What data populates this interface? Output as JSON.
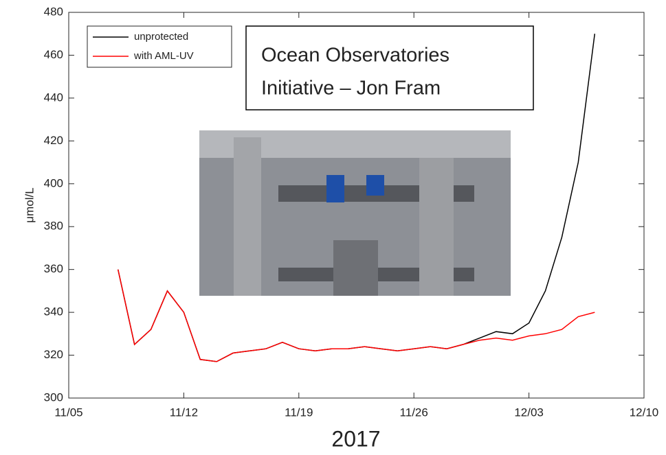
{
  "chart_data": {
    "type": "line",
    "x": [
      "2017-11-08",
      "2017-11-09",
      "2017-11-10",
      "2017-11-11",
      "2017-11-12",
      "2017-11-13",
      "2017-11-14",
      "2017-11-15",
      "2017-11-16",
      "2017-11-17",
      "2017-11-18",
      "2017-11-19",
      "2017-11-20",
      "2017-11-21",
      "2017-11-22",
      "2017-11-23",
      "2017-11-24",
      "2017-11-25",
      "2017-11-26",
      "2017-11-27",
      "2017-11-28",
      "2017-11-29",
      "2017-11-30",
      "2017-12-01",
      "2017-12-02",
      "2017-12-03",
      "2017-12-04",
      "2017-12-05",
      "2017-12-06",
      "2017-12-07"
    ],
    "series": [
      {
        "name": "unprotected",
        "color": "#000000",
        "values": [
          360,
          325,
          332,
          350,
          340,
          318,
          317,
          321,
          322,
          323,
          326,
          323,
          322,
          323,
          323,
          324,
          323,
          322,
          323,
          324,
          323,
          325,
          328,
          331,
          330,
          335,
          350,
          375,
          410,
          470
        ]
      },
      {
        "name": "with AML-UV",
        "color": "#ff0000",
        "values": [
          360,
          325,
          332,
          350,
          340,
          318,
          317,
          321,
          322,
          323,
          326,
          323,
          322,
          323,
          323,
          324,
          323,
          322,
          323,
          324,
          323,
          325,
          327,
          328,
          327,
          329,
          330,
          332,
          338,
          340
        ]
      }
    ],
    "xlim": [
      "2017-11-05",
      "2017-12-10"
    ],
    "xticks": [
      {
        "value": "2017-11-05",
        "label": "11/05"
      },
      {
        "value": "2017-11-12",
        "label": "11/12"
      },
      {
        "value": "2017-11-19",
        "label": "11/19"
      },
      {
        "value": "2017-11-26",
        "label": "11/26"
      },
      {
        "value": "2017-12-03",
        "label": "12/03"
      },
      {
        "value": "2017-12-10",
        "label": "12/10"
      }
    ],
    "ylim": [
      300,
      480
    ],
    "yticks": [
      300,
      320,
      340,
      360,
      380,
      400,
      420,
      440,
      460,
      480
    ],
    "ylabel": "μmol/L",
    "xlabel": "2017",
    "annotation": [
      "Ocean Observatories",
      "Initiative – Jon Fram"
    ],
    "legend": "upper left"
  }
}
